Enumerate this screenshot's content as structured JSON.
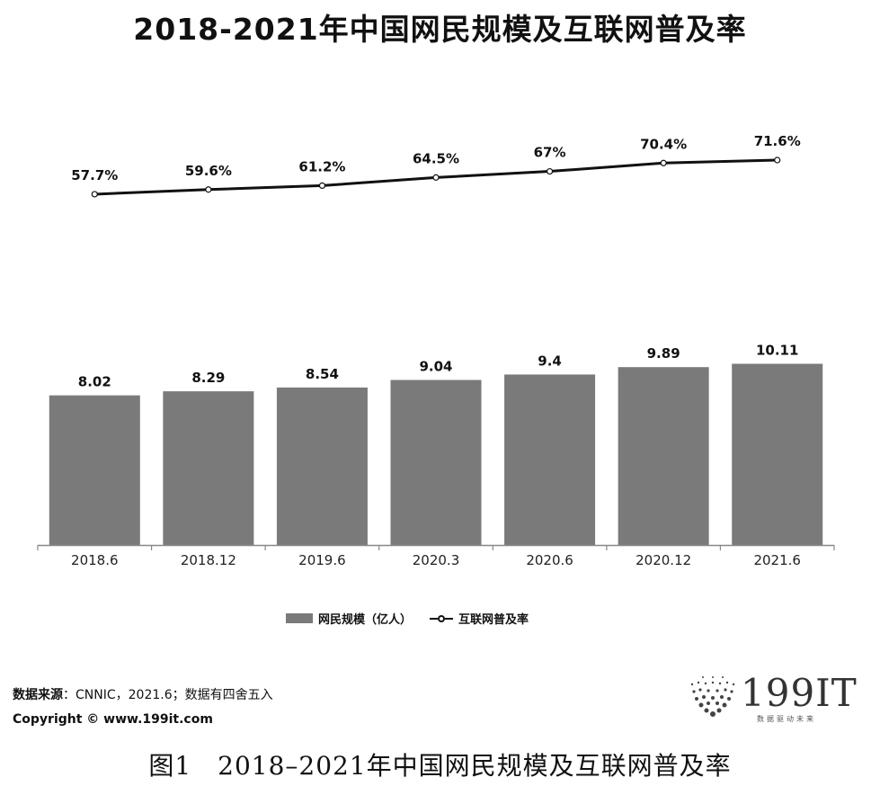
{
  "chart_data": {
    "type": "bar",
    "title": "2018-2021年中国网民规模及互联网普及率",
    "categories": [
      "2018.6",
      "2018.12",
      "2019.6",
      "2020.3",
      "2020.6",
      "2020.12",
      "2021.6"
    ],
    "series": [
      {
        "name": "网民规模（亿人）",
        "type": "bar",
        "values": [
          8.02,
          8.29,
          8.54,
          9.04,
          9.4,
          9.89,
          10.11
        ],
        "labels": [
          "8.02",
          "8.29",
          "8.54",
          "9.04",
          "9.4",
          "9.89",
          "10.11"
        ],
        "color": "#7a7a7a"
      },
      {
        "name": "互联网普及率",
        "type": "line",
        "values": [
          57.7,
          59.6,
          61.2,
          64.5,
          67,
          70.4,
          71.6
        ],
        "labels": [
          "57.7%",
          "59.6%",
          "61.2%",
          "64.5%",
          "67%",
          "70.4%",
          "71.6%"
        ],
        "unit": "%",
        "color": "#111111"
      }
    ],
    "legend_position": "bottom",
    "grid": false,
    "xlabel": "",
    "ylabel": ""
  },
  "legend": {
    "bar_label": "网民规模（亿人）",
    "line_label": "互联网普及率"
  },
  "source": {
    "label": "数据来源",
    "text": "：CNNIC，2021.6；数据有四舍五入",
    "copyright": "Copyright © www.199it.com"
  },
  "logo": {
    "text": "199IT",
    "subtext": "数据驱动未来"
  },
  "caption": "图1　2018–2021年中国网民规模及互联网普及率"
}
